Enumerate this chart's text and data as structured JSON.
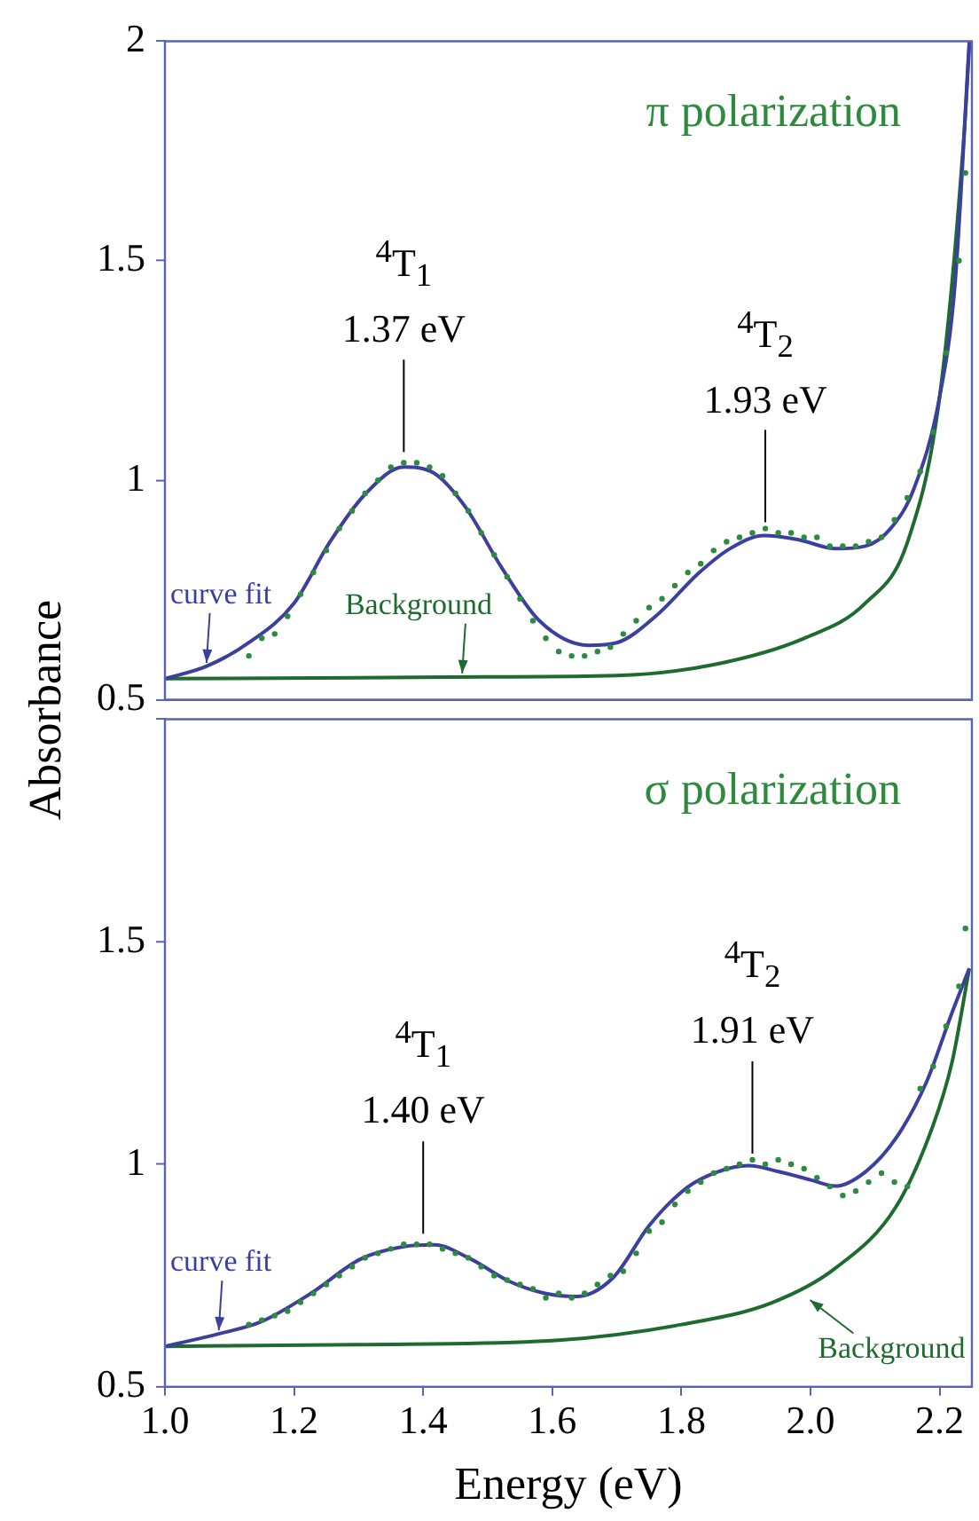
{
  "chart_data": [
    {
      "type": "line",
      "title": "π polarization",
      "ylabel": "Absorbance",
      "xlim": [
        1.0,
        2.25
      ],
      "ylim": [
        0.5,
        2
      ],
      "yticks": [
        0.5,
        1,
        1.5,
        2
      ],
      "tick_labels": "y",
      "series": [
        {
          "type": "line",
          "marker": "none",
          "color": "#3b3f9e",
          "x": [
            1.0,
            1.064,
            1.13,
            1.2,
            1.255,
            1.31,
            1.37,
            1.417,
            1.465,
            1.522,
            1.58,
            1.656,
            1.7,
            1.76,
            1.828,
            1.875,
            1.928,
            1.98,
            2.04,
            2.085,
            2.124,
            2.16,
            2.2,
            2.224,
            2.246
          ],
          "values": [
            0.548,
            0.576,
            0.63,
            0.72,
            0.858,
            0.968,
            1.03,
            1.016,
            0.94,
            0.8,
            0.68,
            0.624,
            0.63,
            0.69,
            0.79,
            0.844,
            0.874,
            0.865,
            0.844,
            0.85,
            0.89,
            0.98,
            1.19,
            1.45,
            2.0
          ]
        },
        {
          "type": "line",
          "marker": "none",
          "color": "#1e6b30",
          "x": [
            1.0,
            1.3,
            1.5,
            1.7,
            1.85,
            1.99,
            2.085,
            2.15,
            2.2,
            2.238,
            2.246
          ],
          "values": [
            0.548,
            0.55,
            0.552,
            0.555,
            0.58,
            0.64,
            0.72,
            0.858,
            1.19,
            1.79,
            1.99
          ]
        },
        {
          "type": "scatter",
          "marker": "circle",
          "color": "#2e8b3e",
          "x": [
            1.13,
            1.15,
            1.17,
            1.19,
            1.21,
            1.23,
            1.25,
            1.27,
            1.29,
            1.31,
            1.33,
            1.35,
            1.37,
            1.39,
            1.41,
            1.43,
            1.45,
            1.47,
            1.49,
            1.51,
            1.53,
            1.55,
            1.57,
            1.59,
            1.61,
            1.63,
            1.65,
            1.67,
            1.69,
            1.71,
            1.73,
            1.75,
            1.77,
            1.79,
            1.81,
            1.83,
            1.85,
            1.87,
            1.89,
            1.91,
            1.93,
            1.95,
            1.97,
            1.99,
            2.01,
            2.03,
            2.05,
            2.07,
            2.09,
            2.11,
            2.13,
            2.15,
            2.17,
            2.19,
            2.21,
            2.23,
            2.24
          ],
          "values": [
            0.6,
            0.64,
            0.65,
            0.69,
            0.74,
            0.79,
            0.84,
            0.89,
            0.93,
            0.97,
            1.0,
            1.03,
            1.04,
            1.04,
            1.03,
            1.01,
            0.97,
            0.93,
            0.88,
            0.83,
            0.78,
            0.73,
            0.68,
            0.64,
            0.61,
            0.6,
            0.6,
            0.61,
            0.62,
            0.65,
            0.68,
            0.71,
            0.73,
            0.76,
            0.79,
            0.81,
            0.84,
            0.86,
            0.87,
            0.88,
            0.89,
            0.88,
            0.88,
            0.87,
            0.87,
            0.85,
            0.85,
            0.85,
            0.86,
            0.87,
            0.91,
            0.96,
            1.02,
            1.11,
            1.29,
            1.5,
            1.7
          ]
        }
      ],
      "annotations": [
        {
          "text": "$^{4}$T$_{1}$\n1.37 eV",
          "x": 1.37,
          "y": 1.04
        },
        {
          "text": "$^{4}$T$_{2}$\n1.93 eV",
          "x": 1.93,
          "y": 0.88
        },
        {
          "text": "curve fit",
          "x": 1.064,
          "y": 0.576
        },
        {
          "text": "Background",
          "x": 1.46,
          "y": 0.552
        }
      ]
    },
    {
      "type": "line",
      "title": "σ polarization",
      "xlabel": "Energy (eV)",
      "xlim": [
        1.0,
        2.25
      ],
      "xticks": [
        {
          "value": 1.0,
          "label": "1.0"
        },
        {
          "value": 1.2,
          "label": "1.2"
        },
        {
          "value": 1.4,
          "label": "1.4"
        },
        {
          "value": 1.6,
          "label": "1.6"
        },
        {
          "value": 1.8,
          "label": "1.8"
        },
        {
          "value": 2.0,
          "label": "2.0"
        },
        {
          "value": 2.2,
          "label": "2.2"
        }
      ],
      "ylim": [
        0.5,
        2
      ],
      "yticks": [
        0.5,
        1,
        1.5,
        {
          "value": 2,
          "label": null
        }
      ],
      "series": [
        {
          "type": "line",
          "marker": "none",
          "color": "#3b3f9e",
          "x": [
            1.0,
            1.083,
            1.15,
            1.226,
            1.303,
            1.37,
            1.417,
            1.474,
            1.532,
            1.589,
            1.637,
            1.694,
            1.751,
            1.809,
            1.856,
            1.904,
            1.952,
            2.0,
            2.038,
            2.085,
            2.133,
            2.18,
            2.219,
            2.246
          ],
          "values": [
            0.591,
            0.619,
            0.647,
            0.71,
            0.787,
            0.815,
            0.819,
            0.787,
            0.738,
            0.71,
            0.703,
            0.745,
            0.864,
            0.948,
            0.983,
            0.997,
            0.983,
            0.965,
            0.951,
            0.983,
            1.06,
            1.186,
            1.34,
            1.44
          ]
        },
        {
          "type": "line",
          "marker": "none",
          "color": "#1e6b30",
          "x": [
            1.0,
            1.3,
            1.61,
            1.8,
            1.94,
            2.038,
            2.133,
            2.19,
            2.219,
            2.246
          ],
          "values": [
            0.591,
            0.595,
            0.605,
            0.64,
            0.689,
            0.766,
            0.906,
            1.088,
            1.228,
            1.44
          ]
        },
        {
          "type": "scatter",
          "marker": "circle",
          "color": "#2e8b3e",
          "x": [
            1.13,
            1.15,
            1.17,
            1.19,
            1.21,
            1.23,
            1.25,
            1.27,
            1.29,
            1.31,
            1.33,
            1.35,
            1.37,
            1.39,
            1.41,
            1.43,
            1.45,
            1.47,
            1.49,
            1.51,
            1.53,
            1.55,
            1.57,
            1.59,
            1.61,
            1.63,
            1.65,
            1.67,
            1.69,
            1.71,
            1.73,
            1.75,
            1.77,
            1.79,
            1.81,
            1.83,
            1.85,
            1.87,
            1.89,
            1.91,
            1.93,
            1.95,
            1.97,
            1.99,
            2.01,
            2.03,
            2.05,
            2.07,
            2.09,
            2.11,
            2.13,
            2.15,
            2.17,
            2.19,
            2.21,
            2.23,
            2.24
          ],
          "values": [
            0.64,
            0.65,
            0.66,
            0.67,
            0.69,
            0.71,
            0.73,
            0.75,
            0.77,
            0.79,
            0.8,
            0.81,
            0.82,
            0.82,
            0.82,
            0.81,
            0.8,
            0.79,
            0.77,
            0.75,
            0.74,
            0.73,
            0.72,
            0.7,
            0.71,
            0.7,
            0.71,
            0.73,
            0.75,
            0.76,
            0.8,
            0.85,
            0.87,
            0.91,
            0.94,
            0.96,
            0.98,
            0.99,
            1.0,
            1.01,
            1.0,
            1.01,
            1.0,
            0.99,
            0.97,
            0.95,
            0.93,
            0.94,
            0.96,
            0.98,
            0.96,
            0.95,
            1.17,
            1.22,
            1.31,
            1.4,
            1.53
          ]
        }
      ],
      "annotations": [
        {
          "text": "$^{4}$T$_{1}$\n1.40 eV",
          "x": 1.4,
          "y": 0.82
        },
        {
          "text": "$^{4}$T$_{2}$\n1.91 eV",
          "x": 1.91,
          "y": 1.0
        },
        {
          "text": "curve fit",
          "x": 1.083,
          "y": 0.619
        },
        {
          "text": "Background",
          "x": 1.995,
          "y": 0.7
        }
      ]
    }
  ]
}
